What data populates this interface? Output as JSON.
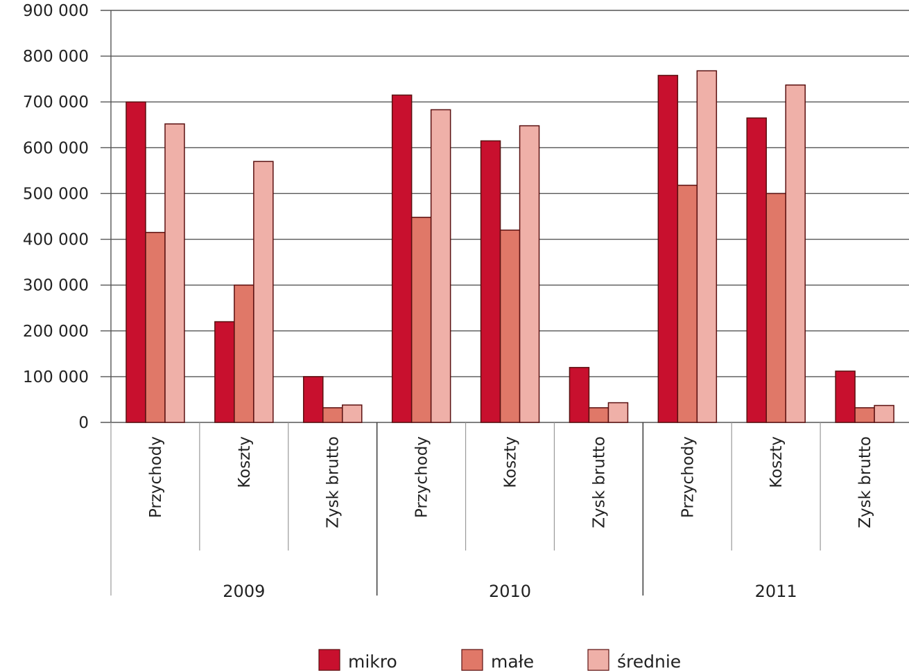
{
  "chart_data": {
    "type": "bar",
    "ylim": [
      0,
      900000
    ],
    "y_ticks": [
      "0",
      "100 000",
      "200 000",
      "300 000",
      "400 000",
      "500 000",
      "600 000",
      "700 000",
      "800 000",
      "900 000"
    ],
    "y_tick_values": [
      0,
      100000,
      200000,
      300000,
      400000,
      500000,
      600000,
      700000,
      800000,
      900000
    ],
    "grid": true,
    "legend_position": "bottom",
    "groups": [
      "2009",
      "2010",
      "2011"
    ],
    "categories": [
      "Przychody",
      "Koszty",
      "Zysk brutto",
      "Przychody",
      "Koszty",
      "Zysk brutto",
      "Przychody",
      "Koszty",
      "Zysk brutto"
    ],
    "series": [
      {
        "name": "mikro",
        "color": "#c8102e",
        "values": [
          700000,
          220000,
          100000,
          715000,
          615000,
          120000,
          758000,
          665000,
          112000
        ]
      },
      {
        "name": "małe",
        "color": "#e07868",
        "values": [
          415000,
          300000,
          32000,
          448000,
          420000,
          32000,
          518000,
          500000,
          32000
        ]
      },
      {
        "name": "średnie",
        "color": "#efb0a8",
        "values": [
          652000,
          570000,
          38000,
          683000,
          648000,
          43000,
          768000,
          737000,
          37000
        ]
      }
    ]
  }
}
